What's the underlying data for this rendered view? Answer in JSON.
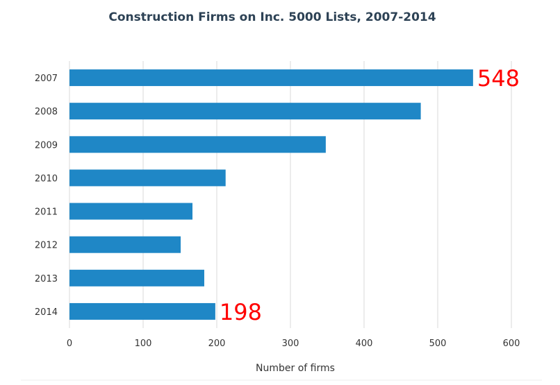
{
  "chart_data": {
    "type": "bar",
    "orientation": "horizontal",
    "title": "Construction Firms on Inc. 5000 Lists, 2007-2014",
    "xlabel": "Number of firms",
    "ylabel": "",
    "categories": [
      "2007",
      "2008",
      "2009",
      "2010",
      "2011",
      "2012",
      "2013",
      "2014"
    ],
    "values": [
      548,
      477,
      348,
      212,
      167,
      151,
      183,
      198
    ],
    "xlim": [
      0,
      600
    ],
    "xticks": [
      "0",
      "100",
      "200",
      "300",
      "400",
      "500",
      "600"
    ],
    "grid": true,
    "annotations": [
      {
        "category": "2007",
        "text": "548"
      },
      {
        "category": "2014",
        "text": "198"
      }
    ],
    "colors": {
      "bar": "#1f87c6",
      "grid": "#d9d9d9",
      "annotation": "#ff0000",
      "title": "#2d4255"
    }
  }
}
